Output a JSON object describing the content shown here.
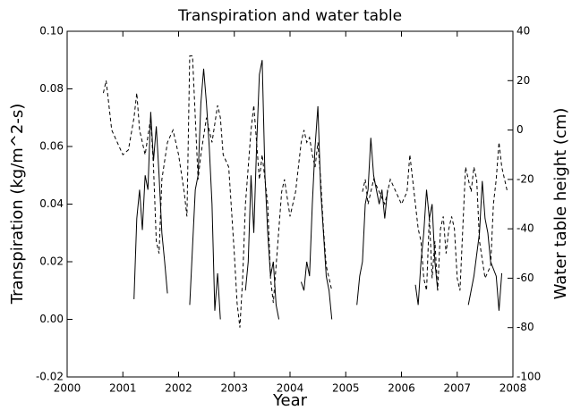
{
  "chart_data": {
    "type": "line",
    "title": "Transpiration and water table",
    "xlabel": "Year",
    "ylabel": "Transpiration (kg/m^2-s)",
    "y2label": "Water table height (cm)",
    "xlim": [
      2000,
      2008
    ],
    "xticks": [
      2000,
      2001,
      2002,
      2003,
      2004,
      2005,
      2006,
      2007,
      2008
    ],
    "ylim": [
      -0.02,
      0.1
    ],
    "yticks": [
      {
        "value": -0.02,
        "label": "-0.02"
      },
      {
        "value": 0,
        "label": "0.00"
      },
      {
        "value": 0.02,
        "label": "0.02"
      },
      {
        "value": 0.04,
        "label": "0.04"
      },
      {
        "value": 0.06,
        "label": "0.06"
      },
      {
        "value": 0.08,
        "label": "0.08"
      },
      {
        "value": 0.1,
        "label": "0.10"
      }
    ],
    "y2lim": [
      -100,
      40
    ],
    "y2ticks": [
      -100,
      -80,
      -60,
      -40,
      -20,
      0,
      20,
      40
    ],
    "series": [
      {
        "color": "#000000",
        "style": "solid",
        "axis": "y",
        "x": [
          2001.2,
          2001.25,
          2001.3,
          2001.35,
          2001.4,
          2001.45,
          2001.5,
          2001.55,
          2001.6,
          2001.65,
          2001.7,
          2001.75,
          2001.8,
          2002.0,
          2002.2,
          2002.25,
          2002.3,
          2002.35,
          2002.4,
          2002.45,
          2002.5,
          2002.55,
          2002.6,
          2002.65,
          2002.7,
          2002.75,
          2003.0,
          2003.2,
          2003.25,
          2003.3,
          2003.35,
          2003.4,
          2003.45,
          2003.5,
          2003.55,
          2003.6,
          2003.65,
          2003.7,
          2003.75,
          2003.8,
          2004.0,
          2004.2,
          2004.25,
          2004.3,
          2004.35,
          2004.4,
          2004.45,
          2004.5,
          2004.55,
          2004.6,
          2004.65,
          2004.7,
          2004.75,
          2005.0,
          2005.2,
          2005.25,
          2005.3,
          2005.35,
          2005.4,
          2005.45,
          2005.5,
          2005.55,
          2005.6,
          2005.65,
          2005.7,
          2005.75,
          2006.0,
          2006.25,
          2006.3,
          2006.35,
          2006.4,
          2006.45,
          2006.5,
          2006.55,
          2006.6,
          2006.65,
          2007.0,
          2007.2,
          2007.3,
          2007.4,
          2007.45,
          2007.5,
          2007.55,
          2007.6,
          2007.7,
          2007.75,
          2007.8
        ],
        "values": [
          0.007,
          0.035,
          0.045,
          0.031,
          0.05,
          0.045,
          0.072,
          0.055,
          0.067,
          0.05,
          0.03,
          0.02,
          0.009,
          null,
          0.005,
          0.025,
          0.045,
          0.05,
          0.075,
          0.087,
          0.075,
          0.06,
          0.04,
          0.003,
          0.016,
          0.0,
          null,
          0.01,
          0.02,
          0.05,
          0.03,
          0.06,
          0.085,
          0.09,
          0.05,
          0.03,
          0.015,
          0.02,
          0.005,
          0.0,
          null,
          0.013,
          0.01,
          0.02,
          0.015,
          0.04,
          0.06,
          0.074,
          0.045,
          0.03,
          0.015,
          0.01,
          0.0,
          null,
          0.005,
          0.015,
          0.02,
          0.04,
          0.045,
          0.063,
          0.05,
          0.045,
          0.04,
          0.045,
          0.035,
          0.045,
          null,
          0.012,
          0.005,
          0.02,
          0.03,
          0.045,
          0.035,
          0.04,
          0.02,
          0.01,
          null,
          0.005,
          0.015,
          0.03,
          0.048,
          0.035,
          0.03,
          0.02,
          0.015,
          0.003,
          0.016
        ]
      },
      {
        "color": "#000000",
        "style": "dashed",
        "axis": "y2",
        "x": [
          2000.65,
          2000.7,
          2000.75,
          2000.8,
          2000.9,
          2001.0,
          2001.1,
          2001.2,
          2001.25,
          2001.3,
          2001.35,
          2001.4,
          2001.5,
          2001.55,
          2001.6,
          2001.65,
          2001.7,
          2001.8,
          2001.9,
          2002.0,
          2002.1,
          2002.15,
          2002.2,
          2002.25,
          2002.3,
          2002.35,
          2002.4,
          2002.5,
          2002.6,
          2002.7,
          2002.75,
          2002.8,
          2002.9,
          2003.0,
          2003.05,
          2003.1,
          2003.15,
          2003.2,
          2003.3,
          2003.35,
          2003.4,
          2003.45,
          2003.5,
          2003.6,
          2003.65,
          2003.7,
          2003.75,
          2003.8,
          2003.85,
          2003.9,
          2004.0,
          2004.1,
          2004.2,
          2004.25,
          2004.3,
          2004.35,
          2004.4,
          2004.45,
          2004.5,
          2004.55,
          2004.6,
          2004.65,
          2004.7,
          2004.75,
          2005.0,
          2005.3,
          2005.35,
          2005.4,
          2005.5,
          2005.6,
          2005.7,
          2005.8,
          2005.9,
          2006.0,
          2006.1,
          2006.15,
          2006.2,
          2006.25,
          2006.3,
          2006.35,
          2006.4,
          2006.45,
          2006.5,
          2006.55,
          2006.6,
          2006.65,
          2006.7,
          2006.75,
          2006.8,
          2006.85,
          2006.9,
          2006.95,
          2007.0,
          2007.05,
          2007.1,
          2007.15,
          2007.2,
          2007.25,
          2007.3,
          2007.35,
          2007.4,
          2007.5,
          2007.6,
          2007.65,
          2007.7,
          2007.75,
          2007.8,
          2007.9
        ],
        "values": [
          15,
          20,
          10,
          0,
          -5,
          -10,
          -8,
          5,
          15,
          0,
          -5,
          -10,
          5,
          -15,
          -45,
          -50,
          -20,
          -5,
          0,
          -10,
          -25,
          -35,
          30,
          30,
          5,
          -20,
          -10,
          5,
          -5,
          10,
          5,
          -10,
          -15,
          -50,
          -70,
          -80,
          -60,
          -30,
          0,
          10,
          -5,
          -20,
          -10,
          -30,
          -60,
          -70,
          -55,
          -40,
          -25,
          -20,
          -35,
          -25,
          -5,
          0,
          -5,
          -3,
          -10,
          -15,
          -5,
          -20,
          -40,
          -55,
          -60,
          -65,
          null,
          -25,
          -20,
          -30,
          -20,
          -25,
          -30,
          -20,
          -25,
          -30,
          -25,
          -10,
          -20,
          -30,
          -40,
          -45,
          -60,
          -65,
          -35,
          -60,
          -45,
          -65,
          -40,
          -35,
          -50,
          -40,
          -35,
          -40,
          -60,
          -65,
          -40,
          -15,
          -20,
          -25,
          -15,
          -20,
          -45,
          -60,
          -55,
          -30,
          -20,
          -5,
          -15,
          -25
        ]
      }
    ]
  }
}
